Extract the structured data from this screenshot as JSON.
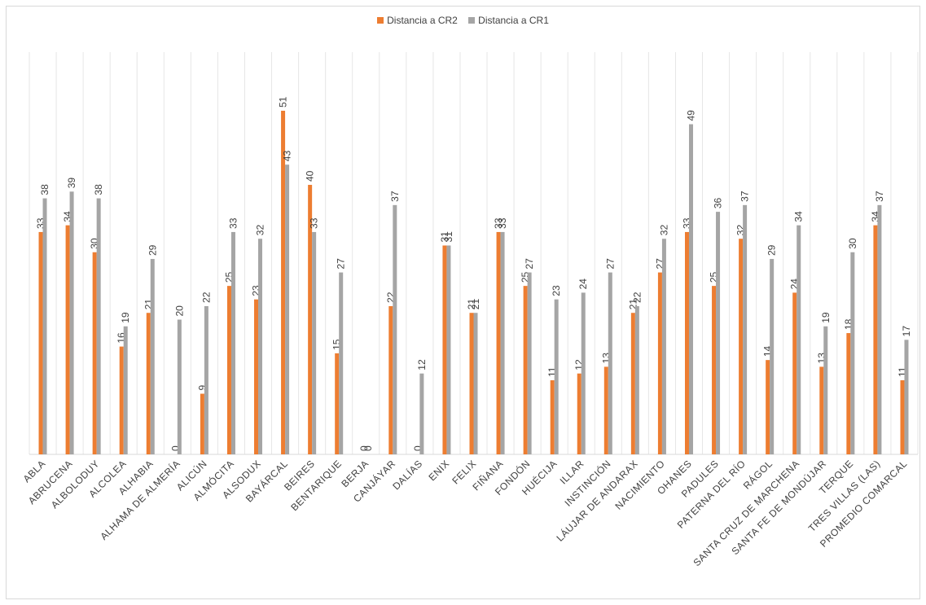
{
  "chart_data": {
    "type": "bar",
    "categories": [
      "ABLA",
      "ABRUCENA",
      "ALBOLODUY",
      "ALCOLEA",
      "ALHABIA",
      "ALHAMA DE ALMERÍA",
      "ALICÚN",
      "ALMÓCITA",
      "ALSODUX",
      "BAYÁRCAL",
      "BEIRES",
      "BENTARIQUE",
      "BERJA",
      "CANJÁYAR",
      "DALÍAS",
      "ENIX",
      "FELIX",
      "FIÑANA",
      "FONDÓN",
      "HUÉCIJA",
      "ILLAR",
      "INSTINCIÓN",
      "LÁUJAR DE ANDARAX",
      "NACIMIENTO",
      "OHANES",
      "PADULES",
      "PATERNA DEL RÍO",
      "RÁGOL",
      "SANTA CRUZ DE MARCHENA",
      "SANTA FE DE MONDÚJAR",
      "TERQUE",
      "TRES VILLAS (LAS)",
      "PROMEDIO COMARCAL"
    ],
    "series": [
      {
        "name": "Distancia a CR2",
        "color": "#ed7d31",
        "values": [
          33,
          34,
          30,
          16,
          21,
          0,
          9,
          25,
          23,
          51,
          40,
          15,
          0,
          22,
          0,
          31,
          21,
          33,
          25,
          11,
          12,
          13,
          21,
          27,
          33,
          25,
          32,
          14,
          24,
          13,
          18,
          34,
          11
        ]
      },
      {
        "name": "Distancia a CR1",
        "color": "#a5a5a5",
        "values": [
          38,
          39,
          38,
          19,
          29,
          20,
          22,
          33,
          32,
          43,
          33,
          27,
          0,
          37,
          12,
          31,
          21,
          33,
          27,
          23,
          24,
          27,
          22,
          32,
          49,
          36,
          37,
          29,
          34,
          19,
          30,
          37,
          17
        ]
      }
    ],
    "ylim": [
      0,
      51
    ],
    "grid": "vertical",
    "legend": "top-center"
  }
}
